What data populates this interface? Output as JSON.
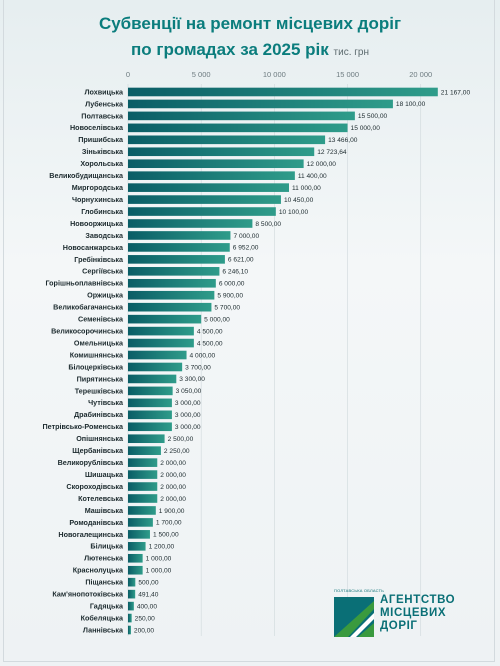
{
  "header": {
    "title_line1": "Субвенції на ремонт місцевих доріг",
    "title_line2": "по громадах за 2025 рік",
    "unit": "тис. грн"
  },
  "logo": {
    "small_text": "ПОЛТАВСЬКА ОБЛАСТЬ",
    "line1": "АГЕНТСТВО",
    "line2": "МІСЦЕВИХ",
    "line3": "ДОРІГ",
    "colors": {
      "teal": "#0a6f76",
      "green": "#3a9a3e"
    }
  },
  "colors": {
    "bar_dark": "#0a5d66",
    "bar_light": "#2f9c8a",
    "title": "#0b7d7d"
  },
  "chart_data": {
    "type": "bar",
    "orientation": "horizontal",
    "xlim": [
      0,
      22000
    ],
    "ticks": [
      0,
      5000,
      10000,
      15000,
      20000
    ],
    "tick_labels": [
      "0",
      "5 000",
      "10 000",
      "15 000",
      "20 000"
    ],
    "grid": true,
    "categories": [
      "Лохвицька",
      "Лубенська",
      "Полтавська",
      "Новоселівська",
      "Пришибська",
      "Зіньківська",
      "Хорольська",
      "Великобудищанська",
      "Миргородська",
      "Чорнухинська",
      "Глобинська",
      "Новооржицька",
      "Заводська",
      "Новосанжарська",
      "Гребінківська",
      "Сергіївська",
      "Горішньоплавнівська",
      "Оржицька",
      "Великобагачанська",
      "Семенівська",
      "Великосорочинська",
      "Омельницька",
      "Комишнянська",
      "Білоцерківська",
      "Пирятинська",
      "Терешківська",
      "Чутівська",
      "Драбинівська",
      "Петрівсько-Роменська",
      "Опішнянська",
      "Щербанівська",
      "Великорублівська",
      "Шишацька",
      "Скороходівська",
      "Котелевська",
      "Машівська",
      "Ромоданівська",
      "Новогалещинська",
      "Білицька",
      "Лютенська",
      "Краснолуцька",
      "Піщанська",
      "Кам'янопотоківська",
      "Гадяцька",
      "Кобеляцька",
      "Ланнівська"
    ],
    "values": [
      21167,
      18100,
      15500,
      15000,
      13466,
      12723.64,
      12000,
      11400,
      11000,
      10450,
      10100,
      8500,
      7000,
      6952,
      6621,
      6246.1,
      6000,
      5900,
      5700,
      5000,
      4500,
      4500,
      4000,
      3700,
      3300,
      3050,
      3000,
      3000,
      3000,
      2500,
      2250,
      2000,
      2000,
      2000,
      2000,
      1900,
      1700,
      1500,
      1200,
      1000,
      1000,
      500,
      491.4,
      400,
      250,
      200
    ],
    "value_labels": [
      "21 167,00",
      "18 100,00",
      "15 500,00",
      "15 000,00",
      "13 466,00",
      "12 723,64",
      "12 000,00",
      "11 400,00",
      "11 000,00",
      "10 450,00",
      "10 100,00",
      "8 500,00",
      "7 000,00",
      "6 952,00",
      "6 621,00",
      "6 246,10",
      "6 000,00",
      "5 900,00",
      "5 700,00",
      "5 000,00",
      "4 500,00",
      "4 500,00",
      "4 000,00",
      "3 700,00",
      "3 300,00",
      "3 050,00",
      "3 000,00",
      "3 000,00",
      "3 000,00",
      "2 500,00",
      "2 250,00",
      "2 000,00",
      "2 000,00",
      "2 000,00",
      "2 000,00",
      "1 900,00",
      "1 700,00",
      "1 500,00",
      "1 200,00",
      "1 000,00",
      "1 000,00",
      "500,00",
      "491,40",
      "400,00",
      "250,00",
      "200,00"
    ]
  }
}
